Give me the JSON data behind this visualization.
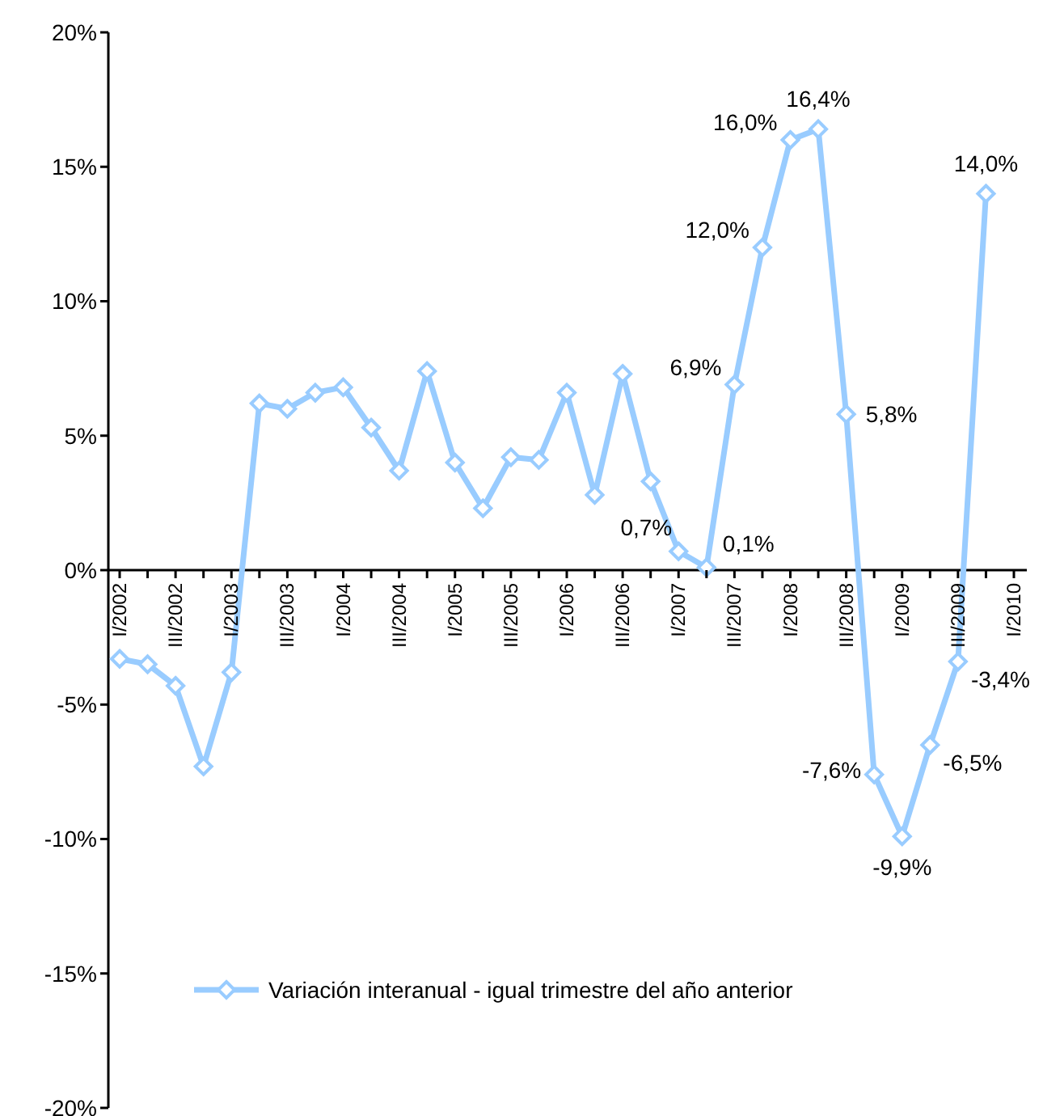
{
  "chart_data": {
    "type": "line",
    "categories": [
      "I/2002",
      null,
      "III/2002",
      null,
      "I/2003",
      null,
      "III/2003",
      null,
      "I/2004",
      null,
      "III/2004",
      null,
      "I/2005",
      null,
      "III/2005",
      null,
      "I/2006",
      null,
      "III/2006",
      null,
      "I/2007",
      null,
      "III/2007",
      null,
      "I/2008",
      null,
      "III/2008",
      null,
      "I/2009",
      null,
      "III/2009",
      null,
      "I/2010"
    ],
    "series": [
      {
        "name": "Variación interanual - igual trimestre del año anterior",
        "color": "#99ccff",
        "values": [
          -3.3,
          -3.5,
          -4.3,
          -7.3,
          -3.8,
          6.2,
          6.0,
          6.6,
          6.8,
          5.3,
          3.7,
          7.4,
          4.0,
          2.3,
          4.2,
          4.1,
          6.6,
          2.8,
          7.3,
          3.3,
          0.7,
          0.1,
          6.9,
          12.0,
          16.0,
          16.4,
          5.8,
          -7.6,
          -9.9,
          -6.5,
          -3.4,
          14.0,
          null
        ],
        "value_labels": [
          null,
          null,
          null,
          null,
          null,
          null,
          null,
          null,
          null,
          null,
          null,
          null,
          null,
          null,
          null,
          null,
          null,
          null,
          null,
          null,
          "0,7%",
          "0,1%",
          "6,9%",
          "12,0%",
          "16,0%",
          "16,4%",
          "5,8%",
          "-7,6%",
          "-9,9%",
          "-6,5%",
          "-3,4%",
          "14,0%",
          null
        ]
      }
    ],
    "ylim": [
      -20,
      20
    ],
    "yticks": [
      {
        "value": -20,
        "label": "-20%"
      },
      {
        "value": -15,
        "label": "-15%"
      },
      {
        "value": -10,
        "label": "-10%"
      },
      {
        "value": -5,
        "label": "-5%"
      },
      {
        "value": 0,
        "label": "0%"
      },
      {
        "value": 5,
        "label": "5%"
      },
      {
        "value": 10,
        "label": "10%"
      },
      {
        "value": 15,
        "label": "15%"
      },
      {
        "value": 20,
        "label": "20%"
      }
    ],
    "grid": false,
    "legend": "bottom",
    "marker": "diamond",
    "line_style": "solid"
  }
}
